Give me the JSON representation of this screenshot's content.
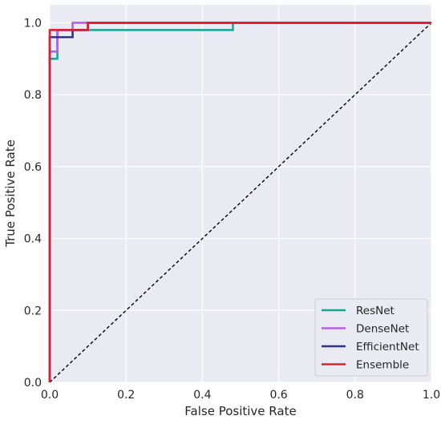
{
  "chart_data": {
    "type": "line",
    "title": "",
    "xlabel": "False Positive Rate",
    "ylabel": "True Positive Rate",
    "xlim": [
      0,
      1
    ],
    "ylim": [
      0,
      1.05
    ],
    "xticks": [
      0.0,
      0.2,
      0.4,
      0.6,
      0.8,
      1.0
    ],
    "yticks": [
      0.0,
      0.2,
      0.4,
      0.6,
      0.8,
      1.0
    ],
    "xtick_labels": [
      "0.0",
      "0.2",
      "0.4",
      "0.6",
      "0.8",
      "1.0"
    ],
    "ytick_labels": [
      "0.0",
      "0.2",
      "0.4",
      "0.6",
      "0.8",
      "1.0"
    ],
    "grid": true,
    "background": "#eaeaf2",
    "legend_position": "lower-right",
    "reference_line": {
      "x": [
        0,
        1
      ],
      "y": [
        0,
        1
      ],
      "style": "dashed",
      "color": "#000000"
    },
    "series": [
      {
        "name": "ResNet",
        "color": "#1aa698",
        "x": [
          0,
          0,
          0.02,
          0.02,
          0.1,
          0.1,
          0.48,
          0.48,
          1.0
        ],
        "y": [
          0,
          0.9,
          0.9,
          0.98,
          0.98,
          0.98,
          0.98,
          1.0,
          1.0
        ]
      },
      {
        "name": "DenseNet",
        "color": "#b35ef0",
        "x": [
          0,
          0,
          0.02,
          0.02,
          0.06,
          0.06,
          1.0
        ],
        "y": [
          0,
          0.92,
          0.92,
          0.98,
          0.98,
          1.0,
          1.0
        ]
      },
      {
        "name": "EfficientNet",
        "color": "#2b3590",
        "x": [
          0,
          0,
          0.06,
          0.06,
          0.1,
          0.1,
          1.0
        ],
        "y": [
          0,
          0.96,
          0.96,
          0.98,
          0.98,
          1.0,
          1.0
        ]
      },
      {
        "name": "Ensemble",
        "color": "#dd1f30",
        "x": [
          0,
          0,
          0.1,
          0.1,
          1.0
        ],
        "y": [
          0,
          0.98,
          0.98,
          1.0,
          1.0
        ]
      }
    ]
  }
}
